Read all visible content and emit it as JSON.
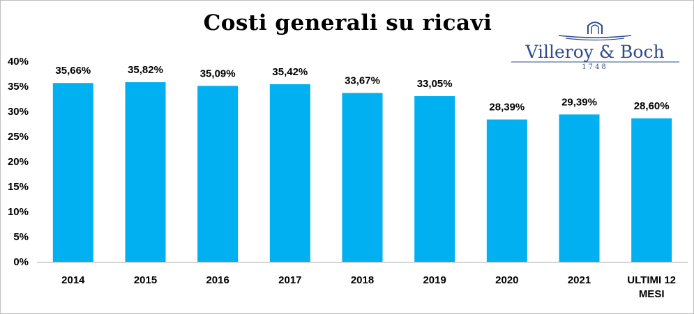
{
  "logo": {
    "brand": "Villeroy & Boch",
    "year": "1748",
    "color": "#2f4b8a"
  },
  "chart_data": {
    "type": "bar",
    "title": "Costi generali su ricavi",
    "xlabel": "",
    "ylabel": "",
    "categories": [
      "2014",
      "2015",
      "2016",
      "2017",
      "2018",
      "2019",
      "2020",
      "2021",
      "ULTIMI 12 MESI"
    ],
    "values": [
      35.66,
      35.82,
      35.09,
      35.42,
      33.67,
      33.05,
      28.39,
      29.39,
      28.6
    ],
    "value_labels": [
      "35,66%",
      "35,82%",
      "35,09%",
      "35,42%",
      "33,67%",
      "33,05%",
      "28,39%",
      "29,39%",
      "28,60%"
    ],
    "ylim": [
      0,
      40
    ],
    "yticks": [
      0,
      5,
      10,
      15,
      20,
      25,
      30,
      35,
      40
    ],
    "ytick_labels": [
      "0%",
      "5%",
      "10%",
      "15%",
      "20%",
      "25%",
      "30%",
      "35%",
      "40%"
    ],
    "grid": false,
    "legend": "none",
    "bar_color": "#00b0f0"
  }
}
